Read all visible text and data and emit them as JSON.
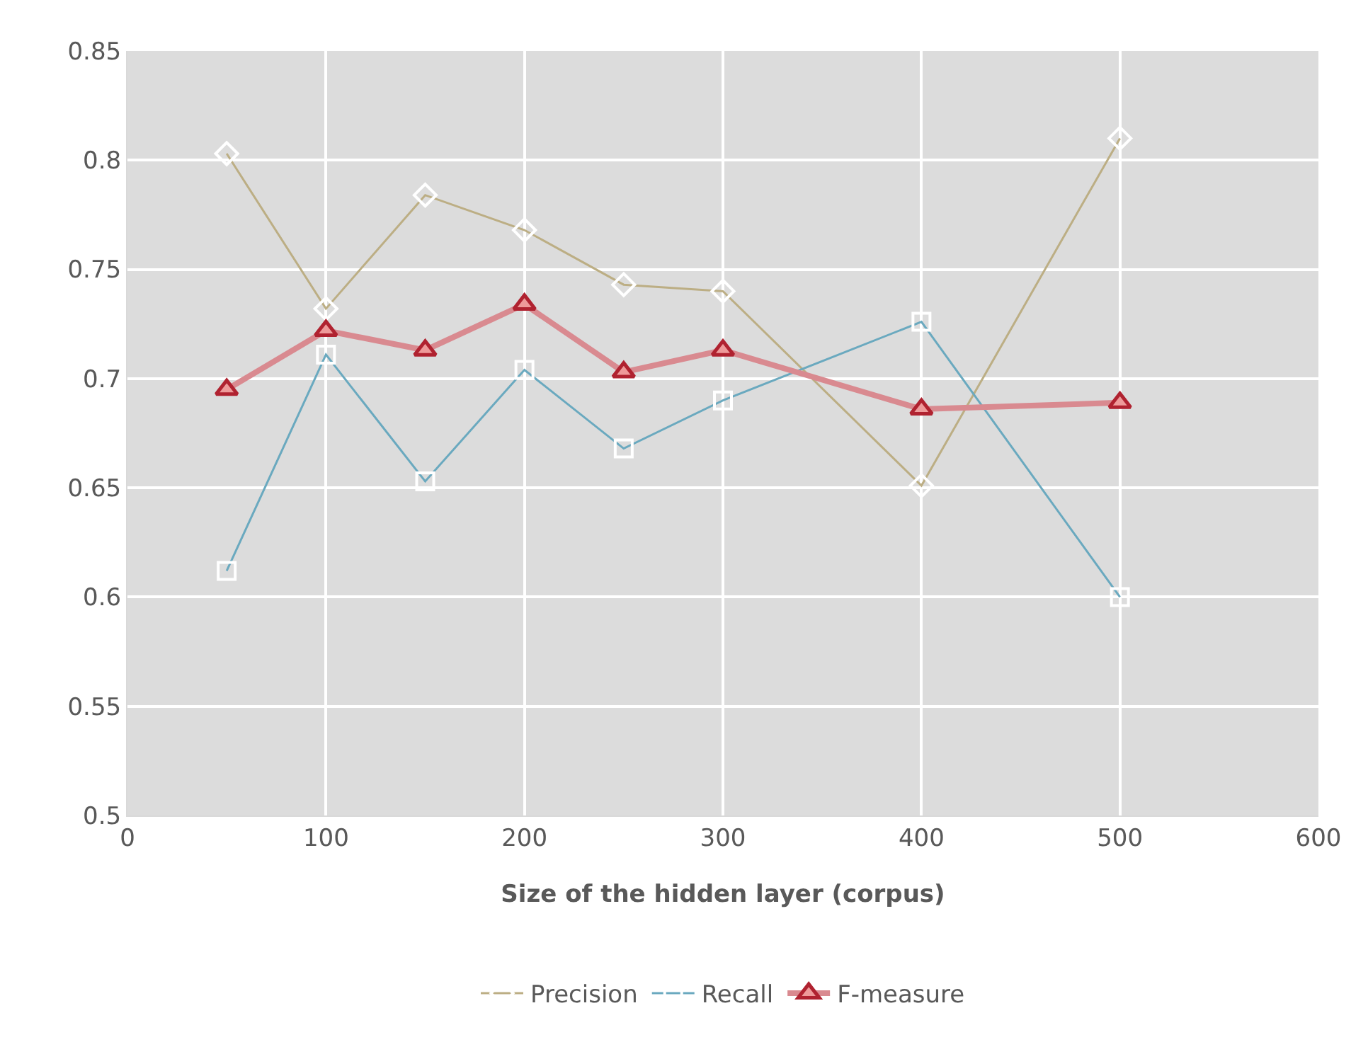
{
  "chart_data": {
    "type": "line",
    "xlabel": "Size of the hidden layer (corpus)",
    "x": [
      50,
      100,
      150,
      200,
      250,
      300,
      400,
      500
    ],
    "series": [
      {
        "name": "Precision",
        "color": "#bcae84",
        "marker": "diamond",
        "values": [
          0.803,
          0.732,
          0.784,
          0.768,
          0.743,
          0.74,
          0.651,
          0.81
        ]
      },
      {
        "name": "Recall",
        "color": "#6aa9bf",
        "marker": "square",
        "values": [
          0.612,
          0.711,
          0.653,
          0.704,
          0.668,
          0.69,
          0.726,
          0.6
        ]
      },
      {
        "name": "F-measure",
        "color": "#b02230",
        "marker": "triangle",
        "values": [
          0.695,
          0.722,
          0.713,
          0.734,
          0.703,
          0.713,
          0.686,
          0.689
        ]
      }
    ],
    "xlim": [
      0,
      600
    ],
    "xticks": [
      0,
      100,
      200,
      300,
      400,
      500,
      600
    ],
    "ylim": [
      0.5,
      0.85
    ],
    "yticks": [
      0.5,
      0.55,
      0.6,
      0.65,
      0.7,
      0.75,
      0.8,
      0.85
    ],
    "grid": true,
    "legend": "bottom",
    "line_style": "solid"
  }
}
